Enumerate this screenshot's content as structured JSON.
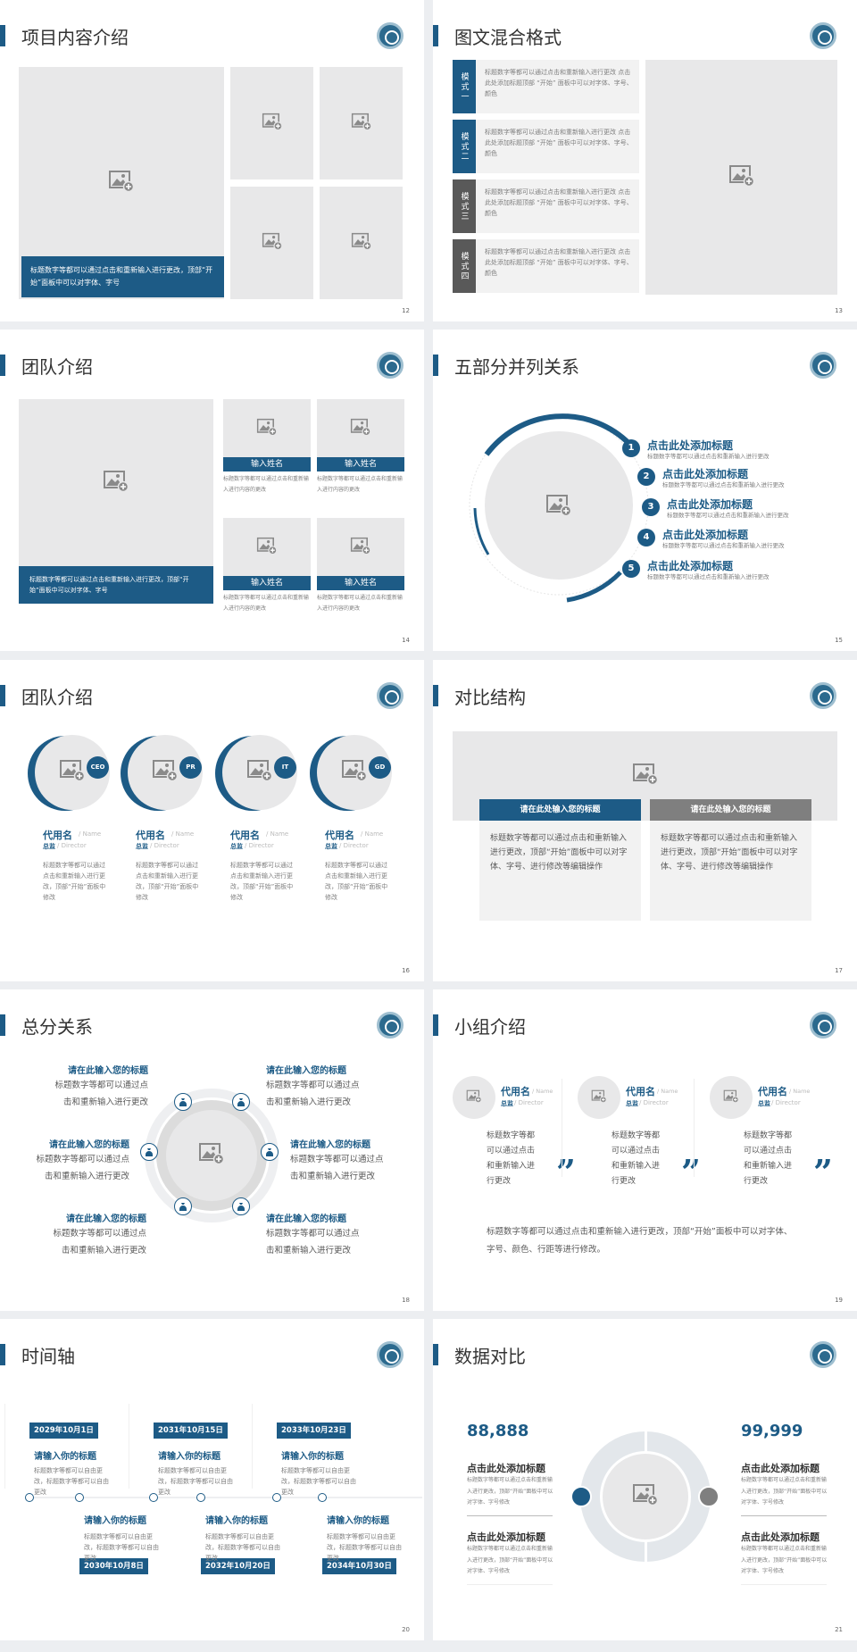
{
  "colors": {
    "primary": "#1d5b86",
    "dark": "#595959",
    "placeholder": "#e8e8e9",
    "text": "#7f7f7f"
  },
  "icons": {
    "logo": "university-seal-icon",
    "placeholder": "image-add-icon",
    "money": "money-bag-icon",
    "quote": "quote-mark-icon"
  },
  "slides": [
    {
      "title": "项目内容介绍",
      "page": "12",
      "caption": "标题数字等都可以通过点击和重新输入进行更改，顶部“开始”面板中可以对字体、字号"
    },
    {
      "title": "图文混合格式",
      "page": "13",
      "modes": [
        {
          "label": "模式一",
          "text": "标题数字等都可以通过点击和重新输入进行更改 点击此处添加标题顶部 “开始” 面板中可以对字体、字号、颜色"
        },
        {
          "label": "模式二",
          "text": "标题数字等都可以通过点击和重新输入进行更改 点击此处添加标题顶部 “开始” 面板中可以对字体、字号、颜色"
        },
        {
          "label": "模式三",
          "text": "标题数字等都可以通过点击和重新输入进行更改 点击此处添加标题顶部 “开始” 面板中可以对字体、字号、颜色"
        },
        {
          "label": "模式四",
          "text": "标题数字等都可以通过点击和重新输入进行更改 点击此处添加标题顶部 “开始” 面板中可以对字体、字号、颜色"
        }
      ]
    },
    {
      "title": "团队介绍",
      "page": "14",
      "caption": "标题数字等都可以通过点击和重新输入进行更改，顶部“开始”面板中可以对字体、字号",
      "members": [
        {
          "name": "输入姓名",
          "desc": "标题数字等都可以通过点击和重新输入进行内容的更改"
        },
        {
          "name": "输入姓名",
          "desc": "标题数字等都可以通过点击和重新输入进行内容的更改"
        },
        {
          "name": "输入姓名",
          "desc": "标题数字等都可以通过点击和重新输入进行内容的更改"
        },
        {
          "name": "输入姓名",
          "desc": "标题数字等都可以通过点击和重新输入进行内容的更改"
        }
      ]
    },
    {
      "title": "五部分并列关系",
      "page": "15",
      "items": [
        {
          "num": "1",
          "title": "点击此处添加标题",
          "desc": "标题数字等都可以通过点击和重新输入进行更改"
        },
        {
          "num": "2",
          "title": "点击此处添加标题",
          "desc": "标题数字等都可以通过点击和重新输入进行更改"
        },
        {
          "num": "3",
          "title": "点击此处添加标题",
          "desc": "标题数字等都可以通过点击和重新输入进行更改"
        },
        {
          "num": "4",
          "title": "点击此处添加标题",
          "desc": "标题数字等都可以通过点击和重新输入进行更改"
        },
        {
          "num": "5",
          "title": "点击此处添加标题",
          "desc": "标题数字等都可以通过点击和重新输入进行更改"
        }
      ]
    },
    {
      "title": "团队介绍",
      "page": "16",
      "people": [
        {
          "badge": "CEO",
          "name": "代用名",
          "name_en": "/ Name",
          "role": "总监",
          "role_en": "/ Director",
          "desc": "标题数字等都可以通过点击和重新输入进行更改，顶部“开始”面板中修改"
        },
        {
          "badge": "PR",
          "name": "代用名",
          "name_en": "/ Name",
          "role": "总监",
          "role_en": "/ Director",
          "desc": "标题数字等都可以通过点击和重新输入进行更改，顶部“开始”面板中修改"
        },
        {
          "badge": "IT",
          "name": "代用名",
          "name_en": "/ Name",
          "role": "总监",
          "role_en": "/ Director",
          "desc": "标题数字等都可以通过点击和重新输入进行更改，顶部“开始”面板中修改"
        },
        {
          "badge": "GD",
          "name": "代用名",
          "name_en": "/ Name",
          "role": "总监",
          "role_en": "/ Director",
          "desc": "标题数字等都可以通过点击和重新输入进行更改，顶部“开始”面板中修改"
        }
      ]
    },
    {
      "title": "对比结构",
      "page": "17",
      "cards": [
        {
          "title": "请在此处输入您的标题",
          "text": "标题数字等都可以通过点击和重新输入进行更改，顶部“开始”面板中可以对字体、字号、进行修改等编辑操作"
        },
        {
          "title": "请在此处输入您的标题",
          "text": "标题数字等都可以通过点击和重新输入进行更改，顶部“开始”面板中可以对字体、字号、进行修改等编辑操作"
        }
      ]
    },
    {
      "title": "总分关系",
      "page": "18",
      "blocks": [
        {
          "title": "请在此输入您的标题",
          "desc": "标题数字等都可以通过点击和重新输入进行更改"
        },
        {
          "title": "请在此输入您的标题",
          "desc": "标题数字等都可以通过点击和重新输入进行更改"
        },
        {
          "title": "请在此输入您的标题",
          "desc": "标题数字等都可以通过点击和重新输入进行更改"
        },
        {
          "title": "请在此输入您的标题",
          "desc": "标题数字等都可以通过点击和重新输入进行更改"
        },
        {
          "title": "请在此输入您的标题",
          "desc": "标题数字等都可以通过点击和重新输入进行更改"
        },
        {
          "title": "请在此输入您的标题",
          "desc": "标题数字等都可以通过点击和重新输入进行更改"
        }
      ]
    },
    {
      "title": "小组介绍",
      "page": "19",
      "people": [
        {
          "name": "代用名",
          "name_en": "/ Name",
          "role": "总监",
          "role_en": "/ Director",
          "desc": "标题数字等都可以通过点击和重新输入进行更改"
        },
        {
          "name": "代用名",
          "name_en": "/ Name",
          "role": "总监",
          "role_en": "/ Director",
          "desc": "标题数字等都可以通过点击和重新输入进行更改"
        },
        {
          "name": "代用名",
          "name_en": "/ Name",
          "role": "总监",
          "role_en": "/ Director",
          "desc": "标题数字等都可以通过点击和重新输入进行更改"
        }
      ],
      "quote": "”",
      "summary": "标题数字等都可以通过点击和重新输入进行更改，顶部“开始”面板中可以对字体、字号、颜色、行距等进行修改。"
    },
    {
      "title": "时间轴",
      "page": "20",
      "events": [
        {
          "date": "2029年10月1日",
          "title": "请输入你的标题",
          "desc": "标题数字等都可以自由更改，标题数字等都可以自由更改"
        },
        {
          "date": "2030年10月8日",
          "title": "请输入你的标题",
          "desc": "标题数字等都可以自由更改，标题数字等都可以自由更改"
        },
        {
          "date": "2031年10月15日",
          "title": "请输入你的标题",
          "desc": "标题数字等都可以自由更改，标题数字等都可以自由更改"
        },
        {
          "date": "2032年10月20日",
          "title": "请输入你的标题",
          "desc": "标题数字等都可以自由更改，标题数字等都可以自由更改"
        },
        {
          "date": "2033年10月23日",
          "title": "请输入你的标题",
          "desc": "标题数字等都可以自由更改，标题数字等都可以自由更改"
        },
        {
          "date": "2034年10月30日",
          "title": "请输入你的标题",
          "desc": "标题数字等都可以自由更改，标题数字等都可以自由更改"
        }
      ]
    },
    {
      "title": "数据对比",
      "page": "21",
      "sides": [
        {
          "number": "88,888",
          "items": [
            {
              "title": "点击此处添加标题",
              "desc": "标题数字等都可以通过点击和重新输入进行更改，顶部“开始”面板中可以对字体、字号修改"
            },
            {
              "title": "点击此处添加标题",
              "desc": "标题数字等都可以通过点击和重新输入进行更改，顶部“开始”面板中可以对字体、字号修改"
            }
          ]
        },
        {
          "number": "99,999",
          "items": [
            {
              "title": "点击此处添加标题",
              "desc": "标题数字等都可以通过点击和重新输入进行更改，顶部“开始”面板中可以对字体、字号修改"
            },
            {
              "title": "点击此处添加标题",
              "desc": "标题数字等都可以通过点击和重新输入进行更改，顶部“开始”面板中可以对字体、字号修改"
            }
          ]
        }
      ]
    }
  ]
}
